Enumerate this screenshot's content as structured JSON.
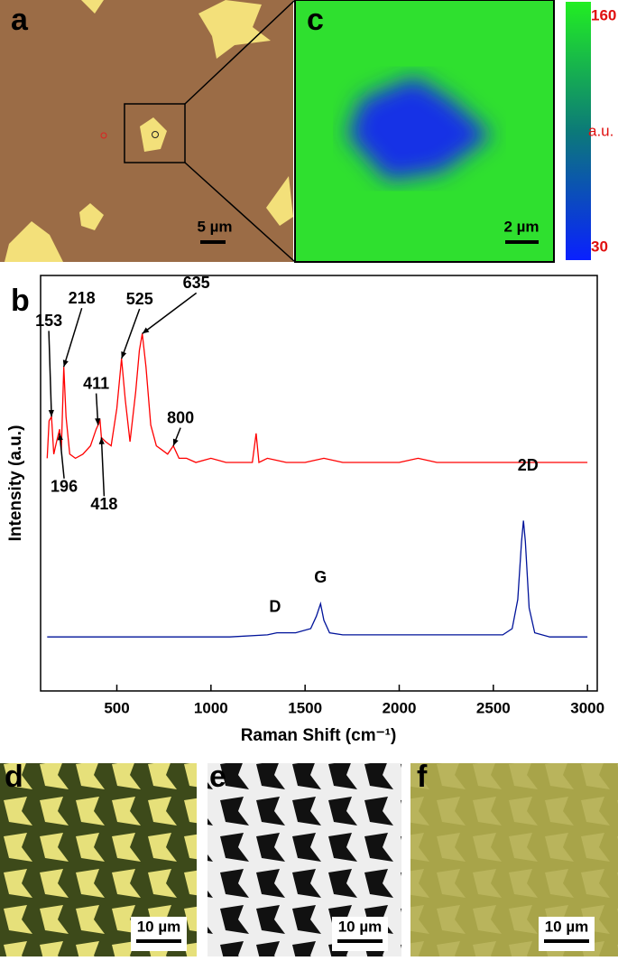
{
  "panels": {
    "a": {
      "label": "a",
      "scale_bar": "5 µm"
    },
    "c": {
      "label": "c",
      "scale_bar": "2 µm",
      "colorbar": {
        "max": 160,
        "unit": "a.u.",
        "min": 30
      }
    },
    "d": {
      "label": "d",
      "scale_bar": "10 µm"
    },
    "e": {
      "label": "e",
      "scale_bar": "10 µm"
    },
    "f": {
      "label": "f",
      "scale_bar": "10 µm"
    }
  },
  "chart_data": {
    "type": "line",
    "label": "b",
    "xlabel": "Raman Shift (cm⁻¹)",
    "ylabel": "Intensity (a.u.)",
    "xlim": [
      95,
      3052
    ],
    "xticks": [
      500,
      1000,
      1500,
      2000,
      2500,
      3000
    ],
    "ylim": [
      0,
      100
    ],
    "series": [
      {
        "color": "#ff0000",
        "x": [
          130,
          140,
          153,
          165,
          180,
          196,
          205,
          218,
          230,
          250,
          280,
          320,
          360,
          390,
          411,
          418,
          440,
          470,
          500,
          525,
          545,
          570,
          600,
          620,
          635,
          655,
          680,
          710,
          740,
          770,
          800,
          830,
          870,
          920,
          1000,
          1080,
          1160,
          1220,
          1240,
          1255,
          1300,
          1400,
          1500,
          1600,
          1700,
          1800,
          1900,
          2000,
          2100,
          2200,
          2300,
          2400,
          2500,
          2600,
          2700,
          2800,
          2900,
          3000
        ],
        "values": [
          56,
          65,
          66,
          57,
          60,
          63,
          58,
          78,
          66,
          57,
          56,
          57,
          59,
          63,
          65,
          61,
          60,
          59,
          68,
          80,
          70,
          60,
          72,
          82,
          86,
          78,
          64,
          59,
          58,
          57,
          59,
          56,
          56,
          55,
          56,
          55,
          55,
          55,
          62,
          55,
          56,
          55,
          55,
          56,
          55,
          55,
          55,
          55,
          56,
          55,
          55,
          55,
          55,
          55,
          55,
          55,
          55,
          55
        ]
      },
      {
        "color": "#00139a",
        "x": [
          130,
          300,
          500,
          700,
          900,
          1100,
          1300,
          1350,
          1450,
          1530,
          1560,
          1582,
          1600,
          1630,
          1700,
          1900,
          2100,
          2300,
          2500,
          2550,
          2600,
          2630,
          2650,
          2660,
          2670,
          2690,
          2720,
          2800,
          3000
        ],
        "values": [
          13,
          13,
          13,
          13,
          13,
          13,
          13.5,
          14,
          14,
          15,
          18,
          21,
          17,
          14,
          13.5,
          13.5,
          13.5,
          13.5,
          13.5,
          13.5,
          15,
          22,
          36,
          41,
          36,
          20,
          14,
          13,
          13
        ]
      }
    ],
    "annotations": [
      {
        "text": "153",
        "x": 153,
        "y": 66
      },
      {
        "text": "218",
        "x": 218,
        "y": 78
      },
      {
        "text": "525",
        "x": 525,
        "y": 80
      },
      {
        "text": "635",
        "x": 635,
        "y": 86
      },
      {
        "text": "411",
        "x": 400,
        "y": 64
      },
      {
        "text": "196",
        "x": 196,
        "y": 62
      },
      {
        "text": "418",
        "x": 418,
        "y": 61
      },
      {
        "text": "800",
        "x": 800,
        "y": 59
      },
      {
        "text": "D",
        "x": 1350,
        "y": 14
      },
      {
        "text": "G",
        "x": 1582,
        "y": 21
      },
      {
        "text": "2D",
        "x": 2660,
        "y": 41
      }
    ]
  }
}
